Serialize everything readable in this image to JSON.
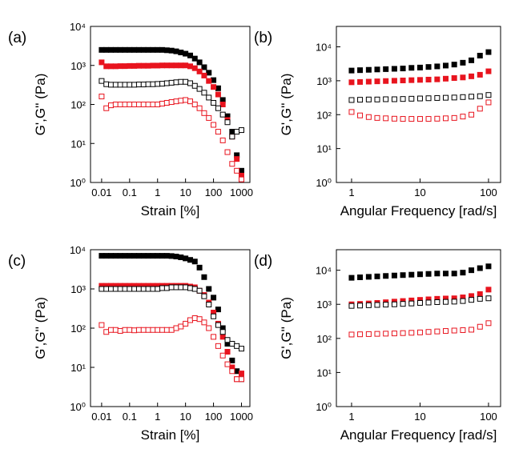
{
  "chart_data": [
    {
      "type": "scatter",
      "panel_label": "(a)",
      "x_label": "Strain [%]",
      "y_label": "G',G'' (Pa)",
      "log_x": true,
      "log_y": true,
      "xlim": [
        0.004,
        2000
      ],
      "ylim": [
        1,
        10000
      ],
      "xticks": [
        0.01,
        0.1,
        1,
        10,
        100,
        1000
      ],
      "yticks": [
        {
          "value": 1,
          "label": "10⁰"
        },
        {
          "value": 10,
          "label": "10¹"
        },
        {
          "value": 100,
          "label": "10²"
        },
        {
          "value": 1000,
          "label": "10³"
        },
        {
          "value": 10000,
          "label": "10⁴"
        }
      ],
      "x": [
        0.01,
        0.0147,
        0.0215,
        0.0316,
        0.0464,
        0.0681,
        0.1,
        0.147,
        0.215,
        0.316,
        0.464,
        0.681,
        1,
        1.47,
        2.15,
        3.16,
        4.64,
        6.81,
        10,
        14.7,
        21.5,
        31.6,
        46.4,
        68.1,
        100,
        147,
        215,
        316,
        464,
        681,
        1000
      ],
      "series": [
        {
          "color": "#000000",
          "marker": "filled",
          "values": [
            2500,
            2500,
            2500,
            2500,
            2500,
            2500,
            2500,
            2500,
            2500,
            2500,
            2500,
            2500,
            2500,
            2500,
            2450,
            2400,
            2300,
            2150,
            2000,
            1800,
            1500,
            1200,
            900,
            650,
            420,
            260,
            130,
            50,
            20,
            5,
            2
          ]
        },
        {
          "color": "#e8141e",
          "marker": "filled",
          "values": [
            1200,
            950,
            950,
            950,
            960,
            960,
            970,
            970,
            980,
            980,
            980,
            990,
            990,
            1000,
            1000,
            1000,
            1000,
            1000,
            1000,
            950,
            850,
            700,
            550,
            400,
            280,
            180,
            100,
            40,
            15,
            4,
            1.5
          ]
        },
        {
          "color": "#000000",
          "marker": "open",
          "values": [
            400,
            330,
            320,
            320,
            320,
            320,
            320,
            320,
            325,
            325,
            330,
            330,
            335,
            340,
            350,
            360,
            370,
            380,
            380,
            350,
            300,
            250,
            200,
            150,
            110,
            80,
            55,
            35,
            15,
            20,
            22
          ]
        },
        {
          "color": "#e8141e",
          "marker": "open",
          "values": [
            160,
            80,
            95,
            100,
            100,
            100,
            100,
            100,
            100,
            100,
            100,
            100,
            100,
            105,
            110,
            115,
            120,
            125,
            130,
            120,
            100,
            80,
            60,
            45,
            30,
            20,
            12,
            6,
            3,
            2,
            1.2
          ]
        }
      ]
    },
    {
      "type": "scatter",
      "panel_label": "(b)",
      "x_label": "Angular Frequency [rad/s]",
      "y_label": "G',G'' (Pa)",
      "log_x": true,
      "log_y": true,
      "xlim": [
        0.6,
        150
      ],
      "ylim": [
        1,
        40000
      ],
      "xticks": [
        1,
        10,
        100
      ],
      "yticks": [
        {
          "value": 1,
          "label": "10⁰"
        },
        {
          "value": 10,
          "label": "10¹"
        },
        {
          "value": 100,
          "label": "10²"
        },
        {
          "value": 1000,
          "label": "10³"
        },
        {
          "value": 10000,
          "label": "10⁴"
        }
      ],
      "x": [
        1,
        1.33,
        1.78,
        2.37,
        3.16,
        4.22,
        5.62,
        7.5,
        10,
        13.3,
        17.8,
        23.7,
        31.6,
        42.2,
        56.2,
        75,
        100
      ],
      "series": [
        {
          "color": "#000000",
          "marker": "filled",
          "values": [
            2000,
            2050,
            2100,
            2150,
            2200,
            2250,
            2300,
            2400,
            2450,
            2550,
            2650,
            2800,
            3000,
            3400,
            4000,
            5500,
            7000
          ]
        },
        {
          "color": "#e8141e",
          "marker": "filled",
          "values": [
            900,
            920,
            940,
            960,
            980,
            1000,
            1020,
            1040,
            1060,
            1080,
            1100,
            1150,
            1200,
            1250,
            1350,
            1500,
            1900
          ]
        },
        {
          "color": "#000000",
          "marker": "open",
          "values": [
            270,
            275,
            280,
            280,
            285,
            285,
            290,
            295,
            300,
            305,
            310,
            315,
            320,
            330,
            340,
            350,
            380
          ]
        },
        {
          "color": "#e8141e",
          "marker": "open",
          "values": [
            120,
            95,
            85,
            80,
            78,
            76,
            75,
            75,
            75,
            75,
            76,
            78,
            80,
            88,
            100,
            150,
            230
          ]
        }
      ]
    },
    {
      "type": "scatter",
      "panel_label": "(c)",
      "x_label": "Strain [%]",
      "y_label": "G',G'' (Pa)",
      "log_x": true,
      "log_y": true,
      "xlim": [
        0.004,
        2000
      ],
      "ylim": [
        1,
        10000
      ],
      "xticks": [
        0.01,
        0.1,
        1,
        10,
        100,
        1000
      ],
      "yticks": [
        {
          "value": 1,
          "label": "10⁰"
        },
        {
          "value": 10,
          "label": "10¹"
        },
        {
          "value": 100,
          "label": "10²"
        },
        {
          "value": 1000,
          "label": "10³"
        },
        {
          "value": 10000,
          "label": "10⁴"
        }
      ],
      "x": [
        0.01,
        0.0147,
        0.0215,
        0.0316,
        0.0464,
        0.0681,
        0.1,
        0.147,
        0.215,
        0.316,
        0.464,
        0.681,
        1,
        1.47,
        2.15,
        3.16,
        4.64,
        6.81,
        10,
        14.7,
        21.5,
        31.6,
        46.4,
        68.1,
        100,
        147,
        215,
        316,
        464,
        681,
        1000
      ],
      "series": [
        {
          "color": "#000000",
          "marker": "filled",
          "values": [
            7000,
            7000,
            7000,
            7000,
            7000,
            7000,
            7000,
            7000,
            7000,
            7000,
            7000,
            7000,
            7000,
            7000,
            7000,
            6900,
            6700,
            6400,
            6000,
            5500,
            5000,
            3500,
            2000,
            1000,
            600,
            300,
            100,
            40,
            15,
            8,
            5
          ]
        },
        {
          "color": "#e8141e",
          "marker": "filled",
          "values": [
            1200,
            1200,
            1200,
            1200,
            1200,
            1200,
            1200,
            1200,
            1200,
            1200,
            1200,
            1200,
            1200,
            1200,
            1200,
            1200,
            1200,
            1200,
            1200,
            1150,
            1100,
            900,
            700,
            450,
            250,
            130,
            60,
            25,
            10,
            5,
            7
          ]
        },
        {
          "color": "#000000",
          "marker": "open",
          "values": [
            1000,
            1000,
            1000,
            1000,
            1000,
            1000,
            1000,
            1000,
            1000,
            1000,
            1000,
            1000,
            1000,
            1050,
            1050,
            1100,
            1100,
            1100,
            1100,
            1050,
            1000,
            900,
            650,
            400,
            200,
            120,
            80,
            50,
            40,
            35,
            30
          ]
        },
        {
          "color": "#e8141e",
          "marker": "open",
          "values": [
            120,
            80,
            90,
            90,
            85,
            90,
            90,
            88,
            90,
            90,
            90,
            90,
            90,
            90,
            90,
            90,
            100,
            110,
            130,
            160,
            180,
            170,
            140,
            100,
            60,
            35,
            20,
            12,
            8,
            5,
            5
          ]
        }
      ]
    },
    {
      "type": "scatter",
      "panel_label": "(d)",
      "x_label": "Angular Frequency [rad/s]",
      "y_label": "G',G'' (Pa)",
      "log_x": true,
      "log_y": true,
      "xlim": [
        0.6,
        150
      ],
      "ylim": [
        1,
        40000
      ],
      "xticks": [
        1,
        10,
        100
      ],
      "yticks": [
        {
          "value": 1,
          "label": "10⁰"
        },
        {
          "value": 10,
          "label": "10¹"
        },
        {
          "value": 100,
          "label": "10²"
        },
        {
          "value": 1000,
          "label": "10³"
        },
        {
          "value": 10000,
          "label": "10⁴"
        }
      ],
      "x": [
        1,
        1.33,
        1.78,
        2.37,
        3.16,
        4.22,
        5.62,
        7.5,
        10,
        13.3,
        17.8,
        23.7,
        31.6,
        42.2,
        56.2,
        75,
        100
      ],
      "series": [
        {
          "color": "#000000",
          "marker": "filled",
          "values": [
            6000,
            6200,
            6400,
            6600,
            6800,
            7000,
            7200,
            7400,
            7600,
            7800,
            8000,
            8000,
            8000,
            8500,
            10000,
            11500,
            13000
          ]
        },
        {
          "color": "#e8141e",
          "marker": "filled",
          "values": [
            1000,
            1030,
            1060,
            1100,
            1150,
            1200,
            1250,
            1300,
            1350,
            1400,
            1450,
            1480,
            1500,
            1600,
            1750,
            2000,
            2700
          ]
        },
        {
          "color": "#000000",
          "marker": "open",
          "values": [
            900,
            920,
            940,
            960,
            980,
            1000,
            1030,
            1060,
            1100,
            1130,
            1160,
            1180,
            1200,
            1250,
            1350,
            1450,
            1500
          ]
        },
        {
          "color": "#e8141e",
          "marker": "open",
          "values": [
            130,
            132,
            134,
            136,
            138,
            140,
            143,
            146,
            150,
            155,
            160,
            165,
            170,
            175,
            180,
            220,
            280
          ]
        }
      ]
    }
  ]
}
